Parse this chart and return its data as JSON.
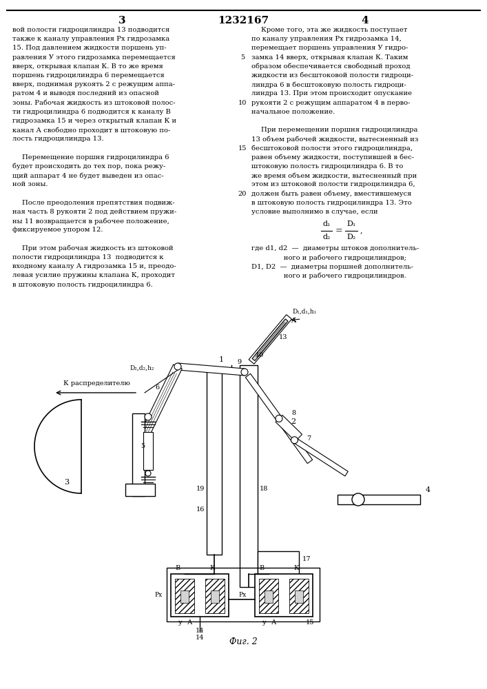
{
  "page_number_left": "3",
  "patent_number": "1232167",
  "page_number_right": "4",
  "bg_color": "#ffffff",
  "text_color": "#000000",
  "left_column_lines": [
    "вой полости гидроцилиндра 13 подводится",
    "также к каналу управления Px гидрозамка",
    "15. Под давлением жидкости поршень уп-",
    "равления У этого гидрозамка перемещается",
    "вверх, открывая клапан К. В то же время",
    "поршень гидроцилиндра 6 перемещается",
    "вверх, поднимая рукоять 2 с режущим аппа-",
    "ратом 4 и выводя последний из опасной",
    "зоны. Рабочая жидкость из штоковой полос-",
    "ти гидроцилиндра 6 подводится к каналу B",
    "гидрозамка 15 и через открытый клапан К и",
    "канал А свободно проходит в штоковую по-",
    "лость гидроцилиндра 13.",
    "",
    "     Перемещение поршня гидроцилиндра 6",
    "будет происходить до тех пор, пока режу-",
    "щий аппарат 4 не будет выведен из опас-",
    "ной зоны.",
    "",
    "     После преодоления препятствия подвиж-",
    "ная часть 8 рукояти 2 под действием пружи-",
    "ны 11 возвращается в рабочее положение,",
    "фиксируемое упором 12.",
    "",
    "     При этом рабочая жидкость из штоковой",
    "полости гидроцилиндра 13  подводится к",
    "входному каналу А гидрозамка 15 и, преодо-",
    "левая усилие пружины клапана К, проходит",
    "в штоковую полость гидроцилиндра 6."
  ],
  "right_column_lines": [
    "     Кроме того, эта же жидкость поступает",
    "по каналу управления Px гидрозамка 14,",
    "перемещает поршень управления У гидро-",
    "замка 14 вверх, открывая клапан К. Таким",
    "образом обеспечивается свободный проход",
    "жидкости из бесштоковой полости гидроци-",
    "линдра 6 в бесштоковую полость гидроци-",
    "линдра 13. При этом происходит опускание",
    "рукояти 2 с режущим аппаратом 4 в перво-",
    "начальное положение.",
    "",
    "     При перемещении поршня гидроцилиндра",
    "13 объем рабочей жидкости, вытесненный из",
    "бесштоковой полости этого гидроцилиндра,",
    "равен объему жидкости, поступившей в бес-",
    "штоковую полость гидроцилиндра 6. В то",
    "же время объем жидкости, вытесненный при",
    "этом из штоковой полости гидроцилиндра 6,",
    "должен быть равен объему, вместившемуся",
    "в штоковую полость гидроцилиндра 13. Это",
    "условие выполнимо в случае, если"
  ],
  "line_numbers": [
    "5",
    "10",
    "15",
    "20"
  ],
  "legend_lines": [
    "где d1, d2  —  диаметры штоков дополнитель-",
    "               ного и рабочего гидроцилиндров;",
    "D1, D2  —  диаметры поршней дополнитель-",
    "               ного и рабочего гидроцилиндров."
  ],
  "caption": "Фиг. 2"
}
